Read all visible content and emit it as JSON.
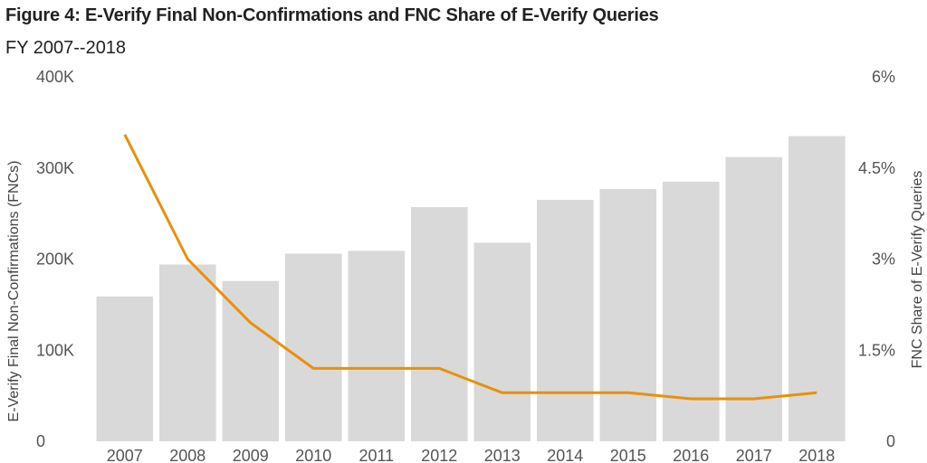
{
  "chart_data": {
    "type": "bar",
    "title": "Figure 4: E-Verify Final Non-Confirmations and FNC Share of E-Verify Queries",
    "subtitle": "FY 2007--2018",
    "categories": [
      "2007",
      "2008",
      "2009",
      "2010",
      "2011",
      "2012",
      "2013",
      "2014",
      "2015",
      "2016",
      "2017",
      "2018"
    ],
    "ylabel": "E-Verify Final Non-Confirmations (FNCs)",
    "y2label": "FNC Share of E-Verify Queries",
    "ylim": [
      0,
      400000
    ],
    "y2lim": [
      0,
      6
    ],
    "yticks": [
      {
        "value": 0,
        "label": "0"
      },
      {
        "value": 100000,
        "label": "100K"
      },
      {
        "value": 200000,
        "label": "200K"
      },
      {
        "value": 300000,
        "label": "300K"
      },
      {
        "value": 400000,
        "label": "400K"
      }
    ],
    "y2ticks": [
      {
        "value": 0,
        "label": "0"
      },
      {
        "value": 1.5,
        "label": "1.5%"
      },
      {
        "value": 3,
        "label": "3%"
      },
      {
        "value": 4.5,
        "label": "4.5%"
      },
      {
        "value": 6,
        "label": "6%"
      }
    ],
    "series": [
      {
        "type": "bar",
        "axis": "left",
        "color": "#d9d9d9",
        "values": [
          159000,
          194000,
          176000,
          206000,
          209000,
          257000,
          218000,
          265000,
          277000,
          285000,
          312000,
          335000
        ]
      },
      {
        "type": "line",
        "axis": "right",
        "color": "#e8900c",
        "values": [
          5.05,
          3.0,
          1.95,
          1.2,
          1.2,
          1.2,
          0.8,
          0.8,
          0.8,
          0.7,
          0.7,
          0.8
        ]
      }
    ],
    "grid": false,
    "legend": "none"
  }
}
